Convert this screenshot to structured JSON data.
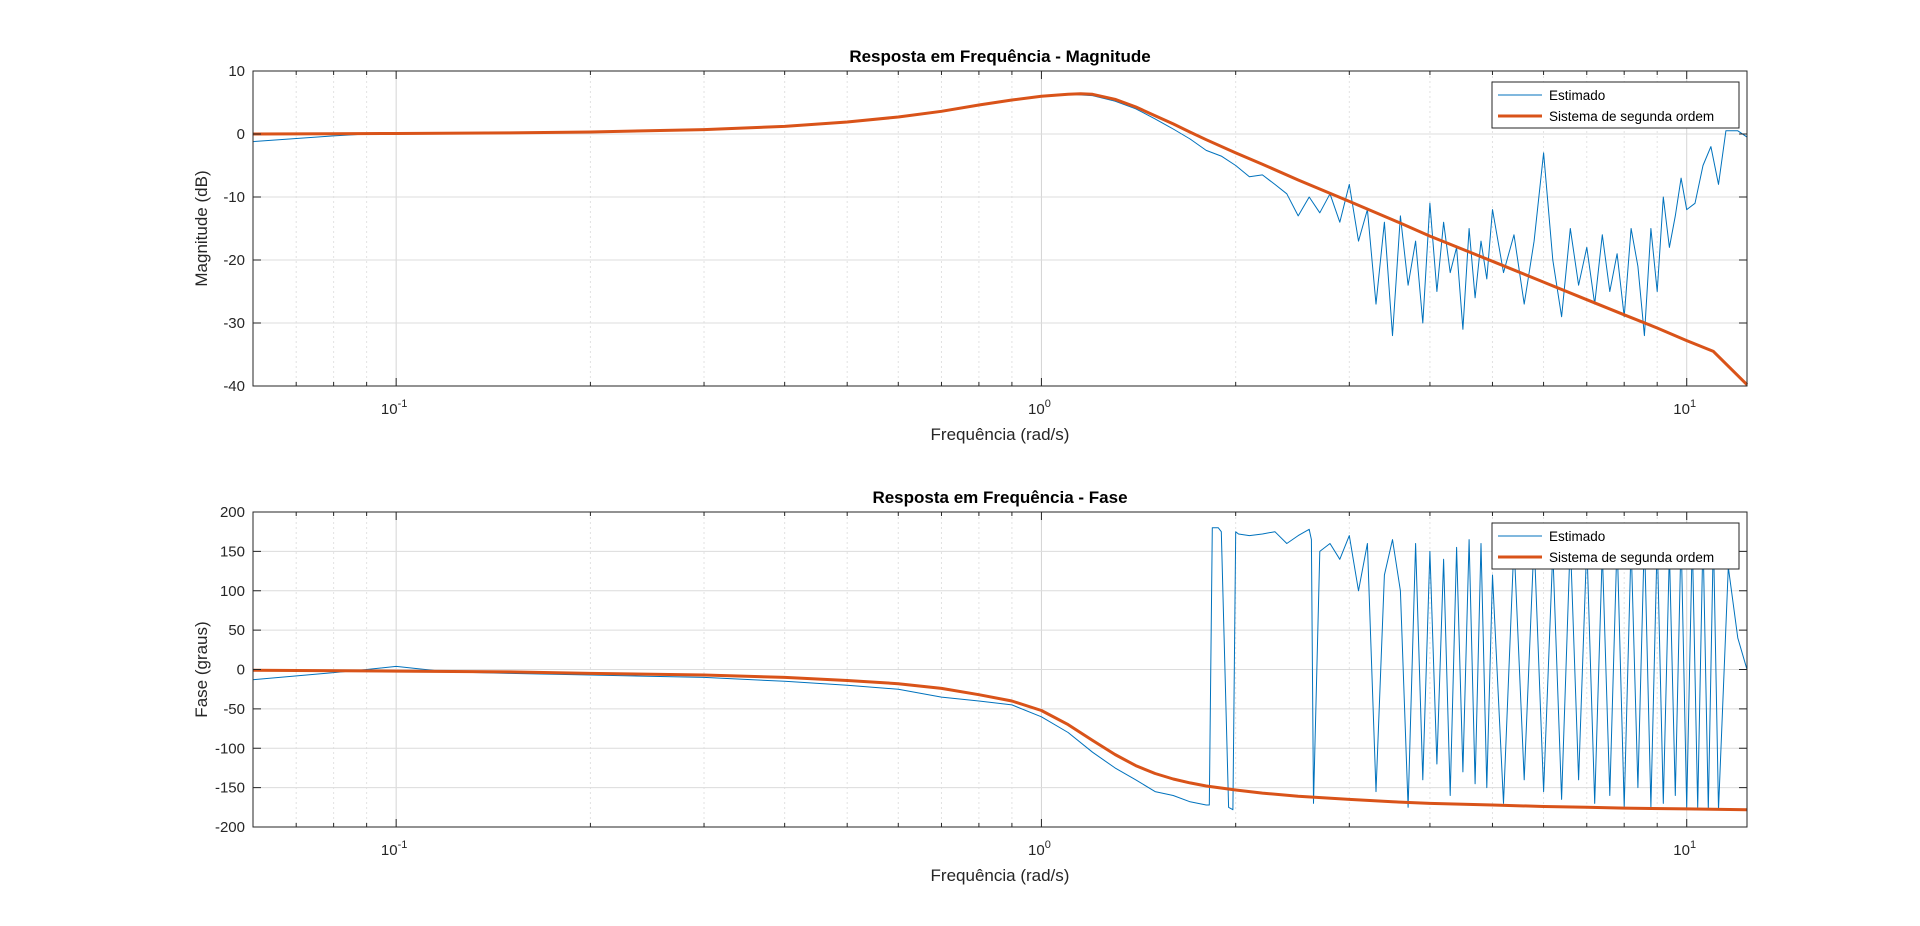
{
  "chart_data": [
    {
      "type": "line",
      "title": "Resposta em Frequência - Magnitude",
      "xlabel": "Frequência (rad/s)",
      "ylabel": "Magnitude (dB)",
      "xscale": "log",
      "xlim": [
        0.06,
        12.4
      ],
      "ylim": [
        -40,
        10
      ],
      "yticks": [
        10,
        0,
        -10,
        -20,
        -30,
        -40
      ],
      "xticks": [
        {
          "base": "10",
          "exp": "-1"
        },
        {
          "base": "10",
          "exp": "0"
        },
        {
          "base": "10",
          "exp": "1"
        }
      ],
      "grid": true,
      "legend": "top-right",
      "series": [
        {
          "name": "Estimado",
          "color": "#0072BD",
          "x": [
            0.06,
            0.08,
            0.09,
            0.1,
            0.15,
            0.2,
            0.3,
            0.4,
            0.5,
            0.6,
            0.7,
            0.8,
            0.9,
            1.0,
            1.1,
            1.2,
            1.3,
            1.4,
            1.5,
            1.6,
            1.7,
            1.8,
            1.9,
            2.0,
            2.1,
            2.2,
            2.3,
            2.4,
            2.5,
            2.6,
            2.7,
            2.8,
            2.9,
            3.0,
            3.1,
            3.2,
            3.3,
            3.4,
            3.5,
            3.6,
            3.7,
            3.8,
            3.9,
            4.0,
            4.1,
            4.2,
            4.3,
            4.4,
            4.5,
            4.6,
            4.7,
            4.8,
            4.9,
            5.0,
            5.2,
            5.4,
            5.6,
            5.8,
            6.0,
            6.2,
            6.4,
            6.6,
            6.8,
            7.0,
            7.2,
            7.4,
            7.6,
            7.8,
            8.0,
            8.2,
            8.4,
            8.6,
            8.8,
            9.0,
            9.2,
            9.4,
            9.6,
            9.8,
            10.0,
            10.3,
            10.6,
            10.9,
            11.2,
            11.5,
            12.0,
            12.4
          ],
          "y": [
            -1.2,
            -0.3,
            0.0,
            0.1,
            0.2,
            0.3,
            0.7,
            1.2,
            1.9,
            2.7,
            3.6,
            4.6,
            5.4,
            6.0,
            6.3,
            6.1,
            5.2,
            4.0,
            2.4,
            0.8,
            -0.8,
            -2.6,
            -3.5,
            -5.0,
            -6.8,
            -6.5,
            -8.0,
            -9.5,
            -13.0,
            -10.0,
            -12.5,
            -9.5,
            -14.0,
            -8.0,
            -17.0,
            -12.0,
            -27.0,
            -14.0,
            -32.0,
            -13.0,
            -24.0,
            -17.0,
            -30.0,
            -11.0,
            -25.0,
            -14.0,
            -22.0,
            -18.0,
            -31.0,
            -15.0,
            -26.0,
            -17.0,
            -23.0,
            -12.0,
            -22.0,
            -16.0,
            -27.0,
            -17.0,
            -3.0,
            -20.0,
            -29.0,
            -15.0,
            -24.0,
            -18.0,
            -27.0,
            -16.0,
            -25.0,
            -19.0,
            -29.0,
            -15.0,
            -21.0,
            -32.0,
            -15.0,
            -25.0,
            -10.0,
            -18.0,
            -13.0,
            -7.0,
            -12.0,
            -11.0,
            -5.0,
            -2.0,
            -8.0,
            0.5,
            0.5,
            -0.5
          ]
        },
        {
          "name": "Sistema de segunda ordem",
          "color": "#D95319",
          "x": [
            0.06,
            0.08,
            0.1,
            0.15,
            0.2,
            0.3,
            0.4,
            0.5,
            0.6,
            0.7,
            0.8,
            0.9,
            1.0,
            1.1,
            1.15,
            1.2,
            1.3,
            1.4,
            1.5,
            1.6,
            1.7,
            1.8,
            2.0,
            2.2,
            2.5,
            3.0,
            3.5,
            4.0,
            5.0,
            6.0,
            7.0,
            8.0,
            9.0,
            10.0,
            11.0,
            12.4
          ],
          "y": [
            0.0,
            0.05,
            0.08,
            0.18,
            0.32,
            0.7,
            1.2,
            1.9,
            2.7,
            3.6,
            4.6,
            5.4,
            6.0,
            6.3,
            6.4,
            6.3,
            5.5,
            4.3,
            2.9,
            1.6,
            0.3,
            -0.9,
            -3.0,
            -4.8,
            -7.3,
            -10.7,
            -13.6,
            -16.2,
            -20.2,
            -23.5,
            -26.3,
            -28.7,
            -30.8,
            -32.8,
            -34.5,
            -39.8
          ]
        }
      ]
    },
    {
      "type": "line",
      "title": "Resposta em Frequência - Fase",
      "xlabel": "Frequência (rad/s)",
      "ylabel": "Fase (graus)",
      "xscale": "log",
      "xlim": [
        0.06,
        12.4
      ],
      "ylim": [
        -200,
        200
      ],
      "yticks": [
        200,
        150,
        100,
        50,
        0,
        -50,
        -100,
        -150,
        -200
      ],
      "xticks": [
        {
          "base": "10",
          "exp": "-1"
        },
        {
          "base": "10",
          "exp": "0"
        },
        {
          "base": "10",
          "exp": "1"
        }
      ],
      "grid": true,
      "legend": "top-right",
      "series": [
        {
          "name": "Estimado",
          "color": "#0072BD",
          "x": [
            0.06,
            0.08,
            0.09,
            0.1,
            0.12,
            0.15,
            0.2,
            0.3,
            0.4,
            0.5,
            0.6,
            0.7,
            0.8,
            0.9,
            1.0,
            1.1,
            1.2,
            1.3,
            1.4,
            1.5,
            1.6,
            1.7,
            1.8,
            1.82,
            1.84,
            1.88,
            1.9,
            1.95,
            1.98,
            2.0,
            2.02,
            2.1,
            2.2,
            2.3,
            2.4,
            2.5,
            2.6,
            2.62,
            2.64,
            2.7,
            2.8,
            2.9,
            3.0,
            3.1,
            3.2,
            3.3,
            3.4,
            3.5,
            3.6,
            3.7,
            3.8,
            3.9,
            4.0,
            4.1,
            4.2,
            4.3,
            4.4,
            4.5,
            4.6,
            4.7,
            4.8,
            4.9,
            5.0,
            5.2,
            5.4,
            5.6,
            5.8,
            6.0,
            6.2,
            6.4,
            6.6,
            6.8,
            7.0,
            7.2,
            7.4,
            7.6,
            7.8,
            8.0,
            8.2,
            8.4,
            8.6,
            8.8,
            9.0,
            9.2,
            9.4,
            9.6,
            9.8,
            10.0,
            10.2,
            10.4,
            10.6,
            10.8,
            11.0,
            11.2,
            11.6,
            12.0,
            12.4
          ],
          "y": [
            -13,
            -4,
            0,
            4,
            -3,
            -5,
            -7,
            -10,
            -15,
            -20,
            -25,
            -35,
            -40,
            -45,
            -60,
            -80,
            -105,
            -125,
            -140,
            -155,
            -160,
            -168,
            -172,
            -172,
            180,
            180,
            175,
            -175,
            -178,
            175,
            172,
            170,
            172,
            175,
            160,
            170,
            178,
            165,
            -170,
            150,
            160,
            140,
            170,
            100,
            160,
            -155,
            120,
            165,
            100,
            -175,
            160,
            -140,
            150,
            -120,
            140,
            -160,
            155,
            -130,
            165,
            -145,
            160,
            -150,
            120,
            -170,
            160,
            -140,
            165,
            -155,
            150,
            -165,
            165,
            -140,
            160,
            -170,
            150,
            -160,
            165,
            -175,
            160,
            -150,
            170,
            -175,
            165,
            -170,
            150,
            -160,
            170,
            -175,
            165,
            -175,
            170,
            -178,
            170,
            -178,
            130,
            40,
            0
          ]
        },
        {
          "name": "Sistema de segunda ordem",
          "color": "#D95319",
          "x": [
            0.06,
            0.1,
            0.15,
            0.2,
            0.3,
            0.4,
            0.5,
            0.6,
            0.7,
            0.8,
            0.9,
            1.0,
            1.1,
            1.2,
            1.3,
            1.4,
            1.5,
            1.6,
            1.7,
            1.8,
            2.0,
            2.2,
            2.5,
            3.0,
            3.5,
            4.0,
            5.0,
            6.0,
            7.0,
            8.0,
            10.0,
            12.4
          ],
          "y": [
            -1,
            -2,
            -3,
            -5,
            -7,
            -10,
            -14,
            -18,
            -24,
            -32,
            -40,
            -52,
            -70,
            -90,
            -108,
            -122,
            -132,
            -139,
            -144,
            -148,
            -153,
            -157,
            -161,
            -165,
            -168,
            -170,
            -172,
            -174,
            -175,
            -176,
            -177,
            -178
          ]
        }
      ]
    }
  ]
}
